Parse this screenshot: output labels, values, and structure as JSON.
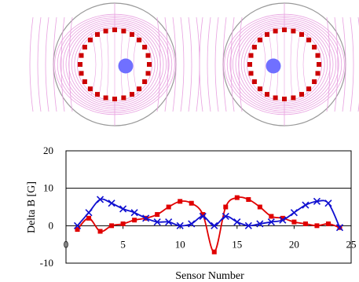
{
  "chart_data": {
    "type": "line",
    "xlabel": "Sensor Number",
    "ylabel": "Delta B [G]",
    "xlim": [
      0,
      25
    ],
    "ylim": [
      -10,
      20
    ],
    "x_ticks": [
      "0",
      "5",
      "10",
      "15",
      "20",
      "25"
    ],
    "y_ticks": [
      "-10",
      "0",
      "10",
      "20"
    ],
    "grid": "horizontal gridline at y=10",
    "series": [
      {
        "marker": "square",
        "color": "#e00000",
        "x": [
          1,
          2,
          3,
          4,
          5,
          6,
          7,
          8,
          9,
          10,
          11,
          12,
          13,
          14,
          15,
          16,
          17,
          18,
          19,
          20,
          21,
          22,
          23,
          24
        ],
        "values": [
          -1,
          2,
          -1.5,
          0,
          0.5,
          1.5,
          2,
          3,
          5,
          6.5,
          6,
          3,
          -7,
          5,
          7.5,
          7,
          5,
          2.5,
          2,
          1,
          0.5,
          0,
          0.5,
          -0.5
        ]
      },
      {
        "marker": "x",
        "color": "#1010d0",
        "x": [
          1,
          2,
          3,
          4,
          5,
          6,
          7,
          8,
          9,
          10,
          11,
          12,
          13,
          14,
          15,
          16,
          17,
          18,
          19,
          20,
          21,
          22,
          23,
          24
        ],
        "values": [
          0,
          3.5,
          7,
          6,
          4.5,
          3.5,
          2,
          1,
          1,
          0,
          0.5,
          2.5,
          0,
          2.5,
          1,
          0,
          0.5,
          1,
          1.5,
          3.5,
          5.5,
          6.5,
          6,
          -0.5
        ]
      }
    ],
    "diagrams": [
      {
        "view": "left",
        "ring_markers": 24,
        "probe": "blue disc right of center"
      },
      {
        "view": "right",
        "ring_markers": 24,
        "probe": "blue disc left of center"
      }
    ]
  },
  "colors": {
    "field_lines": "#e8a0e0",
    "ring_marker": "#cc0000",
    "probe": "#7070ff",
    "outer_circle": "#999999"
  }
}
